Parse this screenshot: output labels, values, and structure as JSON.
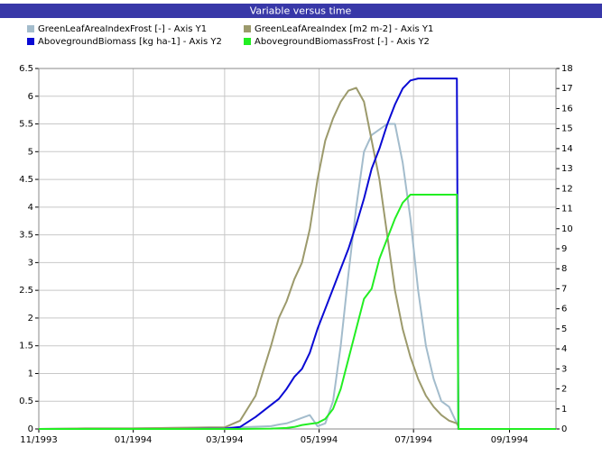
{
  "chart_data": {
    "type": "line",
    "title": "Variable versus time",
    "x": [
      0,
      30,
      60,
      90,
      110,
      120,
      130,
      140,
      150,
      155,
      160,
      165,
      170,
      175,
      180,
      185,
      190,
      195,
      200,
      205,
      210,
      215,
      220,
      225,
      230,
      235,
      240,
      245,
      250,
      255,
      260,
      265,
      270,
      271,
      300,
      334
    ],
    "xlim": [
      0,
      334
    ],
    "xticks": [
      {
        "value": 0,
        "label": "11/1993"
      },
      {
        "value": 61,
        "label": "01/1994"
      },
      {
        "value": 120,
        "label": "03/1994"
      },
      {
        "value": 181,
        "label": "05/1994"
      },
      {
        "value": 242,
        "label": "07/1994"
      },
      {
        "value": 304,
        "label": "09/1994"
      }
    ],
    "ylim": [
      0,
      6.5
    ],
    "yticks": [
      0,
      0.5,
      1,
      1.5,
      2,
      2.5,
      3,
      3.5,
      4,
      4.5,
      5,
      5.5,
      6,
      6.5
    ],
    "y2lim": [
      0,
      18
    ],
    "y2ticks": [
      0,
      1,
      2,
      3,
      4,
      5,
      6,
      7,
      8,
      9,
      10,
      11,
      12,
      13,
      14,
      15,
      16,
      17,
      18
    ],
    "grid": true,
    "series": [
      {
        "name": "GreenLeafAreaIndexFrost [-] - Axis Y1",
        "color": "#a3bccc",
        "axis": "y1",
        "values": [
          0,
          0.01,
          0.01,
          0.02,
          0.02,
          0.02,
          0.03,
          0.04,
          0.05,
          0.08,
          0.1,
          0.15,
          0.2,
          0.25,
          0.05,
          0.1,
          0.5,
          1.5,
          2.8,
          4.0,
          5.0,
          5.3,
          5.4,
          5.5,
          5.5,
          4.8,
          3.8,
          2.5,
          1.5,
          0.9,
          0.5,
          0.4,
          0.1,
          0.05,
          null,
          null
        ]
      },
      {
        "name": "GreenLeafAreaIndex [m2 m-2] - Axis Y1",
        "color": "#9c9a6c",
        "axis": "y1",
        "values": [
          0,
          0.01,
          0.01,
          0.02,
          0.03,
          0.03,
          0.15,
          0.6,
          1.5,
          2.0,
          2.3,
          2.7,
          3.0,
          3.6,
          4.5,
          5.2,
          5.6,
          5.9,
          6.1,
          6.15,
          5.9,
          5.2,
          4.5,
          3.5,
          2.5,
          1.8,
          1.3,
          0.9,
          0.6,
          0.4,
          0.25,
          0.15,
          0.1,
          0.05,
          null,
          null
        ]
      },
      {
        "name": "AbovegroundBiomass [kg ha-1] - Axis Y2",
        "color": "#0a0ad4",
        "axis": "y2",
        "values": [
          0,
          0,
          0,
          0,
          0.01,
          0.02,
          0.1,
          0.6,
          1.2,
          1.5,
          2.0,
          2.6,
          3.0,
          3.8,
          5.0,
          6.0,
          7.0,
          8.0,
          9.0,
          10.2,
          11.5,
          13.0,
          14.0,
          15.2,
          16.2,
          17.0,
          17.4,
          17.5,
          17.5,
          17.5,
          17.5,
          17.5,
          17.5,
          0,
          0,
          0
        ]
      },
      {
        "name": "AbovegroundBiomassFrost [-] - Axis Y2",
        "color": "#22ee22",
        "axis": "y2",
        "values": [
          0,
          0,
          0,
          0,
          0,
          0,
          0,
          0.01,
          0.02,
          0.03,
          0.05,
          0.1,
          0.2,
          0.25,
          0.3,
          0.5,
          1.0,
          2.0,
          3.5,
          5.0,
          6.5,
          7.0,
          8.5,
          9.5,
          10.5,
          11.3,
          11.7,
          11.7,
          11.7,
          11.7,
          11.7,
          11.7,
          11.7,
          0,
          0,
          0
        ]
      }
    ]
  }
}
